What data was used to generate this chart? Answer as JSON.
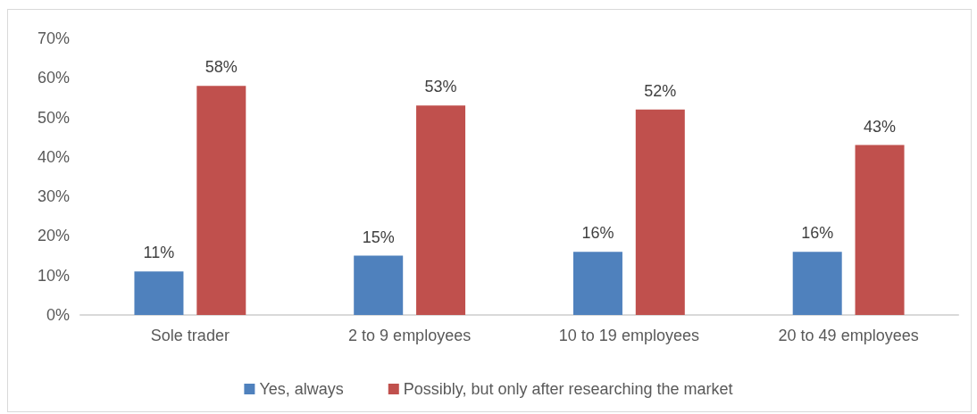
{
  "chart_data": {
    "type": "bar",
    "categories": [
      "Sole trader",
      "2 to 9 employees",
      "10 to 19 employees",
      "20 to 49 employees"
    ],
    "series": [
      {
        "name": "Yes, always",
        "color": "#4f81bd",
        "values": [
          11,
          15,
          16,
          16
        ],
        "value_labels": [
          "11%",
          "15%",
          "16%",
          "16%"
        ]
      },
      {
        "name": "Possibly, but only after researching the market",
        "color": "#c0504d",
        "values": [
          58,
          53,
          52,
          43
        ],
        "value_labels": [
          "58%",
          "53%",
          "52%",
          "43%"
        ]
      }
    ],
    "ylim": [
      0,
      70
    ],
    "yticks": [
      {
        "value": 0,
        "label": "0%"
      },
      {
        "value": 10,
        "label": "10%"
      },
      {
        "value": 20,
        "label": "20%"
      },
      {
        "value": 30,
        "label": "30%"
      },
      {
        "value": 40,
        "label": "40%"
      },
      {
        "value": 50,
        "label": "50%"
      },
      {
        "value": 60,
        "label": "60%"
      },
      {
        "value": 70,
        "label": "70%"
      }
    ],
    "grid": false,
    "legend": "bottom"
  }
}
